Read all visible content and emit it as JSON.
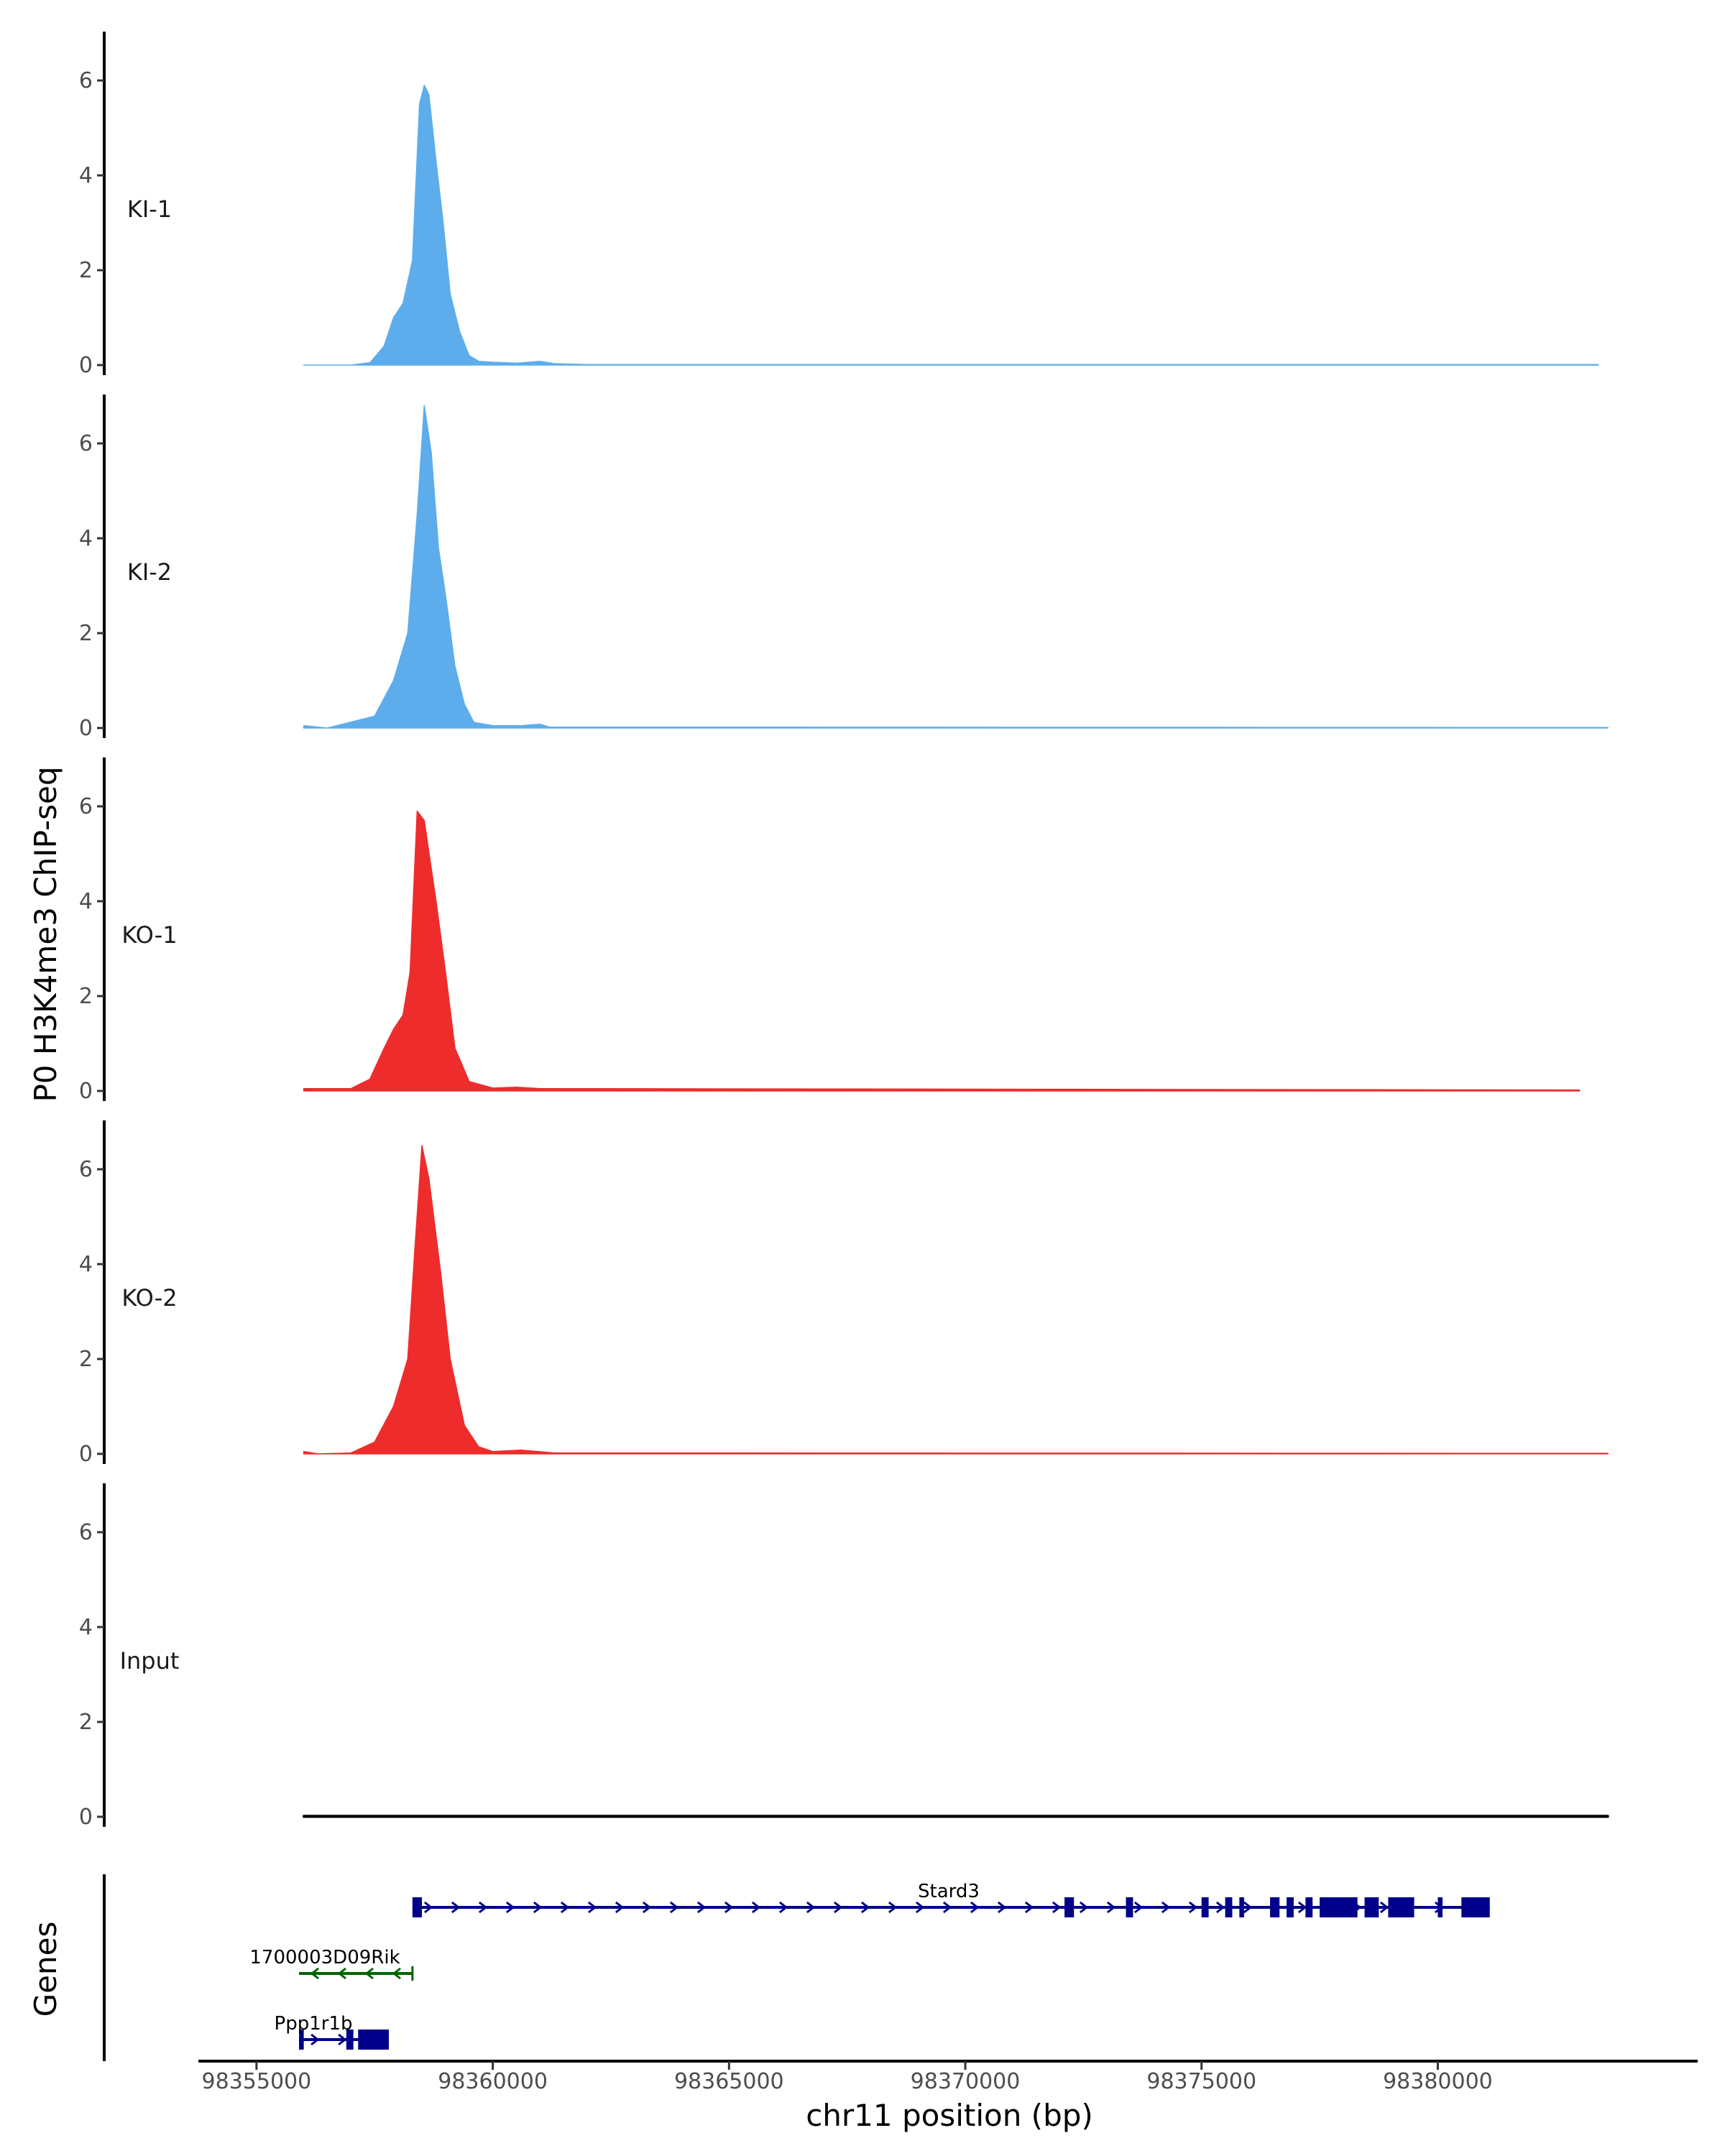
{
  "chart_data": {
    "type": "area",
    "title": "",
    "ylabel": "P0 H3K4me3 ChIP-seq",
    "xlabel": "chr11 position (bp)",
    "xlim": [
      98353800,
      98385500
    ],
    "ylim": [
      0,
      7
    ],
    "yticks": [
      0,
      2,
      4,
      6
    ],
    "xticks": [
      98355000,
      98360000,
      98365000,
      98370000,
      98375000,
      98380000
    ],
    "xtick_labels": [
      "98355000",
      "98360000",
      "98365000",
      "98370000",
      "98375000",
      "98380000"
    ],
    "grid": false,
    "tracks": [
      {
        "name": "KI-1",
        "color": "#5DADEC",
        "x": [
          98356000,
          98357000,
          98357400,
          98357700,
          98357900,
          98358100,
          98358300,
          98358450,
          98358550,
          98358650,
          98358800,
          98358950,
          98359100,
          98359300,
          98359500,
          98359700,
          98360000,
          98360500,
          98361000,
          98361300,
          98362000,
          98383400
        ],
        "values": [
          0,
          0,
          0.05,
          0.4,
          1.0,
          1.3,
          2.2,
          5.5,
          5.9,
          5.7,
          4.3,
          3.0,
          1.5,
          0.7,
          0.2,
          0.08,
          0.06,
          0.04,
          0.08,
          0.03,
          0.01,
          0.01
        ]
      },
      {
        "name": "KI-2",
        "color": "#5DADEC",
        "x": [
          98356000,
          98356500,
          98357500,
          98357900,
          98358200,
          98358400,
          98358550,
          98358700,
          98358850,
          98359000,
          98359200,
          98359400,
          98359600,
          98360000,
          98360600,
          98361000,
          98361200,
          98383600
        ],
        "values": [
          0.05,
          0,
          0.25,
          1.0,
          2.0,
          4.5,
          6.8,
          5.8,
          3.8,
          2.8,
          1.3,
          0.5,
          0.12,
          0.05,
          0.05,
          0.08,
          0.02,
          0.01
        ]
      },
      {
        "name": "KO-1",
        "color": "#EE2C2C",
        "x": [
          98356000,
          98357000,
          98357400,
          98357700,
          98357900,
          98358100,
          98358250,
          98358400,
          98358550,
          98358800,
          98359000,
          98359200,
          98359500,
          98360000,
          98360500,
          98361000,
          98383000
        ],
        "values": [
          0.05,
          0.05,
          0.25,
          0.9,
          1.3,
          1.6,
          2.5,
          5.9,
          5.7,
          4.0,
          2.5,
          0.9,
          0.2,
          0.06,
          0.08,
          0.05,
          0.02
        ]
      },
      {
        "name": "KO-2",
        "color": "#EE2C2C",
        "x": [
          98356000,
          98356300,
          98357000,
          98357500,
          98357900,
          98358200,
          98358350,
          98358500,
          98358650,
          98358900,
          98359100,
          98359400,
          98359700,
          98360000,
          98360600,
          98361300,
          98383600
        ],
        "values": [
          0.05,
          0,
          0.02,
          0.25,
          1.0,
          2.0,
          4.3,
          6.5,
          5.8,
          3.8,
          2.0,
          0.6,
          0.15,
          0.05,
          0.08,
          0.02,
          0.01
        ]
      },
      {
        "name": "Input",
        "color": "#000000",
        "x": [
          98356000,
          98383600
        ],
        "values": [
          0.02,
          0.02
        ]
      }
    ],
    "genes": {
      "label": "Genes",
      "items": [
        {
          "name": "Stard3",
          "strand": "+",
          "color": "#00008B",
          "start": 98358300,
          "end": 98381100,
          "exons": [
            [
              98358300,
              98358500
            ],
            [
              98372100,
              98372300
            ],
            [
              98373400,
              98373550
            ],
            [
              98375000,
              98375150
            ],
            [
              98375500,
              98375650
            ],
            [
              98375800,
              98375900
            ],
            [
              98376450,
              98376650
            ],
            [
              98376800,
              98376950
            ],
            [
              98377200,
              98377350
            ],
            [
              98377500,
              98378300
            ],
            [
              98378450,
              98378750
            ],
            [
              98378950,
              98379500
            ],
            [
              98380000,
              98380100
            ],
            [
              98380500,
              98381100
            ]
          ]
        },
        {
          "name": "1700003D09Rik",
          "strand": "-",
          "color": "#006400",
          "start": 98355900,
          "end": 98358300,
          "exons": []
        },
        {
          "name": "Ppp1r1b",
          "strand": "+",
          "color": "#00008B",
          "start": 98355900,
          "end": 98357800,
          "exons": [
            [
              98355900,
              98356000
            ],
            [
              98356900,
              98357050
            ],
            [
              98357150,
              98357800
            ]
          ]
        }
      ]
    }
  }
}
